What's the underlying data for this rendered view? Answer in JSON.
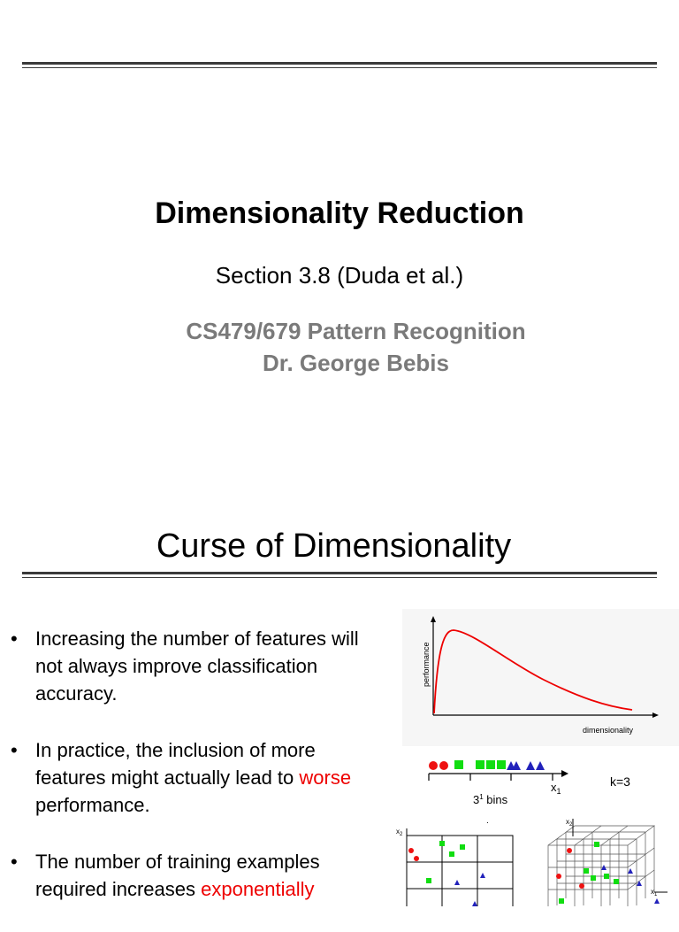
{
  "slide1": {
    "title": "Dimensionality Reduction",
    "subtitle": "Section 3.8 (Duda et al.)",
    "course": "CS479/679 Pattern Recognition",
    "instructor": "Dr. George Bebis"
  },
  "slide2": {
    "title": "Curse of Dimensionality",
    "bullets": [
      {
        "text": "Increasing the number of features will not always improve classification accuracy."
      },
      {
        "before": "In practice, the inclusion of more features might actually lead to ",
        "highlight": "worse",
        "after": " performance."
      },
      {
        "before": "The number of training examples required increases ",
        "highlight": "exponentially",
        "after": ""
      }
    ],
    "bullet_symbol": "•",
    "highlight_color": "#ee0000",
    "perf_chart": {
      "ylabel": "performance",
      "xlabel": "dimensionality"
    },
    "one_d": {
      "k_label": "k=3",
      "bins_label_base": "3",
      "bins_label_sup": "1",
      "bins_label_rest": " bins",
      "axis_label": "x",
      "axis_sub": "1"
    },
    "grid_2d": {
      "ylabel": "x",
      "ysub": "2",
      "marker": "."
    },
    "grid_3d": {
      "ylabel": "x",
      "ysub": "2",
      "xlabel": "x",
      "xsub": "1"
    },
    "colors": {
      "red": "#ee1111",
      "green": "#11dd11",
      "blue": "#2222bb"
    }
  }
}
